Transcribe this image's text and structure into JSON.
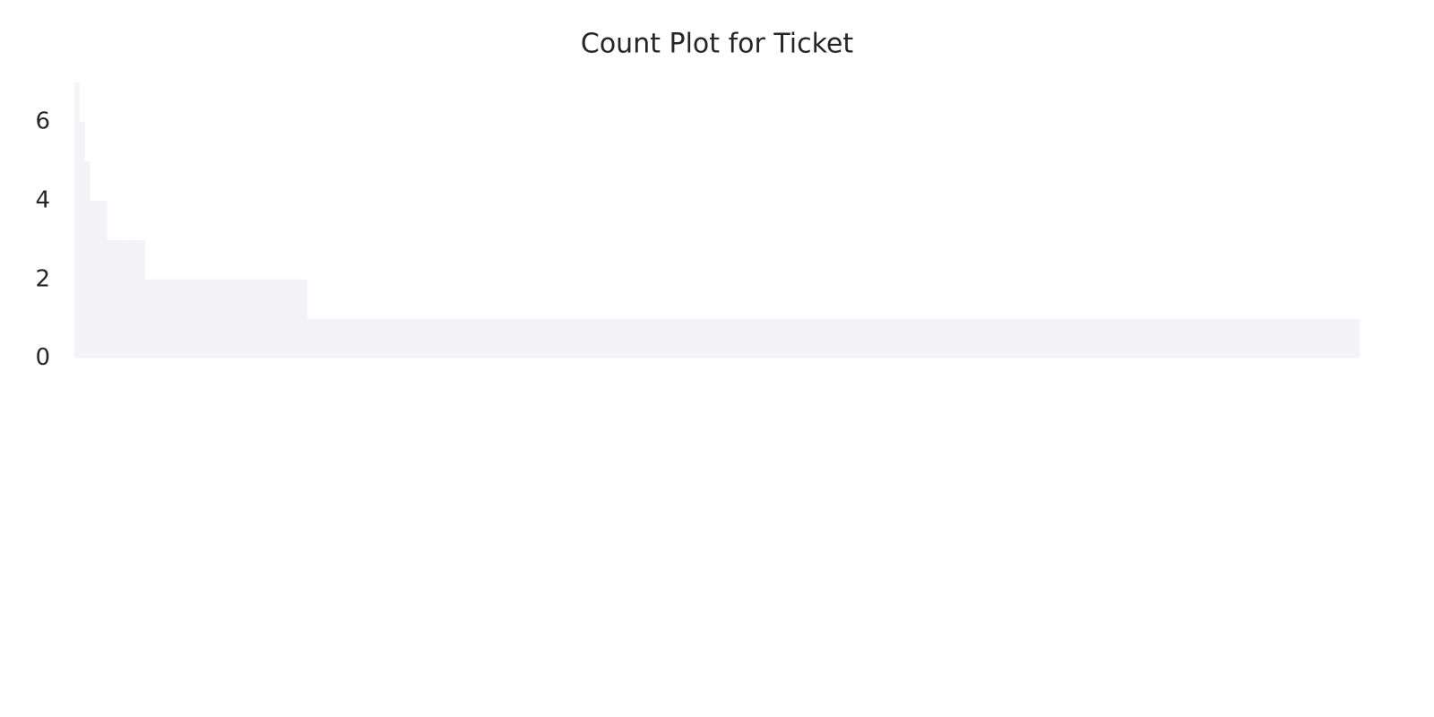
{
  "chart_data": {
    "type": "bar",
    "title": "Count Plot for Ticket",
    "values": [
      7,
      7,
      7,
      6,
      6,
      6,
      5,
      5,
      5,
      4,
      4,
      4,
      4,
      4,
      4,
      4,
      4,
      4,
      4,
      3,
      3,
      3,
      3,
      3,
      3,
      3,
      3,
      3,
      3,
      3,
      3,
      3,
      3,
      3,
      3,
      3,
      3,
      3,
      3,
      3,
      3,
      2,
      2,
      2,
      2,
      2,
      2,
      2,
      2,
      2,
      2,
      2,
      2,
      2,
      2,
      2,
      2,
      2,
      2,
      2,
      2,
      2,
      2,
      2,
      2,
      2,
      2,
      2,
      2,
      2,
      2,
      2,
      2,
      2,
      2,
      2,
      2,
      2,
      2,
      2,
      2,
      2,
      2,
      2,
      2,
      2,
      2,
      2,
      2,
      2,
      2,
      2,
      2,
      2,
      2,
      2,
      2,
      2,
      2,
      2,
      2,
      2,
      2,
      2,
      2,
      2,
      2,
      2,
      2,
      2,
      2,
      2,
      2,
      2,
      2,
      2,
      2,
      2,
      2,
      2,
      2,
      2,
      2,
      2,
      2,
      2,
      2,
      2,
      2,
      2,
      2,
      2,
      2,
      2,
      2,
      1,
      1,
      1,
      1,
      1,
      1,
      1,
      1,
      1,
      1,
      1,
      1,
      1,
      1,
      1,
      1,
      1,
      1,
      1,
      1,
      1,
      1,
      1,
      1,
      1,
      1,
      1,
      1,
      1,
      1,
      1,
      1,
      1,
      1,
      1,
      1,
      1,
      1,
      1,
      1,
      1,
      1,
      1,
      1,
      1,
      1,
      1,
      1,
      1,
      1,
      1,
      1,
      1,
      1,
      1,
      1,
      1,
      1,
      1,
      1,
      1,
      1,
      1,
      1,
      1,
      1,
      1,
      1,
      1,
      1,
      1,
      1,
      1,
      1,
      1,
      1,
      1,
      1,
      1,
      1,
      1,
      1,
      1,
      1,
      1,
      1,
      1,
      1,
      1,
      1,
      1,
      1,
      1,
      1,
      1,
      1,
      1,
      1,
      1,
      1,
      1,
      1,
      1,
      1,
      1,
      1,
      1,
      1,
      1,
      1,
      1,
      1,
      1,
      1,
      1,
      1,
      1,
      1,
      1,
      1,
      1,
      1,
      1,
      1,
      1,
      1,
      1,
      1,
      1,
      1,
      1,
      1,
      1,
      1,
      1,
      1,
      1,
      1,
      1,
      1,
      1,
      1,
      1,
      1,
      1,
      1,
      1,
      1,
      1,
      1,
      1,
      1,
      1,
      1,
      1,
      1,
      1,
      1,
      1,
      1,
      1,
      1,
      1,
      1,
      1,
      1,
      1,
      1,
      1,
      1,
      1,
      1,
      1,
      1,
      1,
      1,
      1,
      1,
      1,
      1,
      1,
      1,
      1,
      1,
      1,
      1,
      1,
      1,
      1,
      1,
      1,
      1,
      1,
      1,
      1,
      1,
      1,
      1,
      1,
      1,
      1,
      1,
      1,
      1,
      1,
      1,
      1,
      1,
      1,
      1,
      1,
      1,
      1,
      1,
      1,
      1,
      1,
      1,
      1,
      1,
      1,
      1,
      1,
      1,
      1,
      1,
      1,
      1,
      1,
      1,
      1,
      1,
      1,
      1,
      1,
      1,
      1,
      1,
      1,
      1,
      1,
      1,
      1,
      1,
      1,
      1,
      1,
      1,
      1,
      1,
      1,
      1,
      1,
      1,
      1,
      1,
      1,
      1,
      1,
      1,
      1,
      1,
      1,
      1,
      1,
      1,
      1,
      1,
      1,
      1,
      1,
      1,
      1,
      1,
      1,
      1,
      1,
      1,
      1,
      1,
      1,
      1,
      1,
      1,
      1,
      1,
      1,
      1,
      1,
      1,
      1,
      1,
      1,
      1,
      1,
      1,
      1,
      1,
      1,
      1,
      1,
      1,
      1,
      1,
      1,
      1,
      1,
      1,
      1,
      1,
      1,
      1,
      1,
      1,
      1,
      1,
      1,
      1,
      1,
      1,
      1,
      1,
      1,
      1,
      1,
      1,
      1,
      1,
      1,
      1,
      1,
      1,
      1,
      1,
      1,
      1,
      1,
      1,
      1,
      1,
      1,
      1,
      1,
      1,
      1,
      1,
      1,
      1,
      1,
      1,
      1,
      1,
      1,
      1,
      1,
      1,
      1,
      1,
      1,
      1,
      1,
      1,
      1,
      1,
      1,
      1,
      1,
      1,
      1,
      1,
      1,
      1,
      1,
      1,
      1,
      1,
      1,
      1,
      1,
      1,
      1,
      1,
      1,
      1,
      1,
      1,
      1,
      1,
      1,
      1,
      1,
      1,
      1,
      1,
      1,
      1,
      1,
      1,
      1,
      1,
      1,
      1,
      1,
      1,
      1,
      1,
      1,
      1,
      1,
      1,
      1,
      1,
      1,
      1,
      1,
      1,
      1,
      1,
      1,
      1,
      1,
      1,
      1,
      1,
      1,
      1,
      1,
      1,
      1,
      1,
      1,
      1,
      1,
      1,
      1,
      1,
      1,
      1,
      1,
      1,
      1,
      1,
      1,
      1,
      1,
      1,
      1,
      1,
      1,
      1,
      1,
      1,
      1,
      1,
      1,
      1,
      1,
      1,
      1,
      1,
      1,
      1,
      1,
      1,
      1,
      1,
      1,
      1,
      1,
      1,
      1,
      1,
      1,
      1,
      1,
      1,
      1,
      1,
      1,
      1,
      1,
      1,
      1,
      1,
      1,
      1,
      1,
      1,
      1,
      1,
      1,
      1,
      1,
      1,
      1,
      1,
      1,
      1,
      1,
      1,
      1,
      1,
      1,
      1,
      1,
      1,
      1,
      1,
      1,
      1,
      1,
      1,
      1,
      1,
      1,
      1,
      1,
      1,
      1,
      1,
      1,
      1,
      1,
      1,
      1,
      1,
      1,
      1,
      1,
      1,
      1,
      1,
      1,
      1,
      1,
      1,
      1,
      1,
      1,
      1,
      1,
      1,
      1,
      1,
      1,
      1,
      1,
      1,
      1,
      1,
      1,
      1,
      1,
      1,
      1,
      1,
      1,
      1,
      1,
      1,
      1,
      1,
      1,
      1,
      1,
      1,
      1,
      1,
      1,
      1,
      1,
      1,
      1,
      1,
      1,
      1,
      1,
      1,
      1,
      1,
      1,
      1,
      1,
      1,
      1,
      1,
      1,
      1,
      1,
      1,
      1,
      1,
      1,
      1,
      1,
      1,
      1,
      1,
      1,
      1,
      1,
      1,
      1,
      1,
      1,
      1,
      1,
      1,
      1,
      1
    ],
    "color": "#f3f3f7",
    "ylim": [
      -0.6,
      7.3
    ],
    "yticks": [
      0,
      2,
      4,
      6
    ],
    "grid": false
  }
}
